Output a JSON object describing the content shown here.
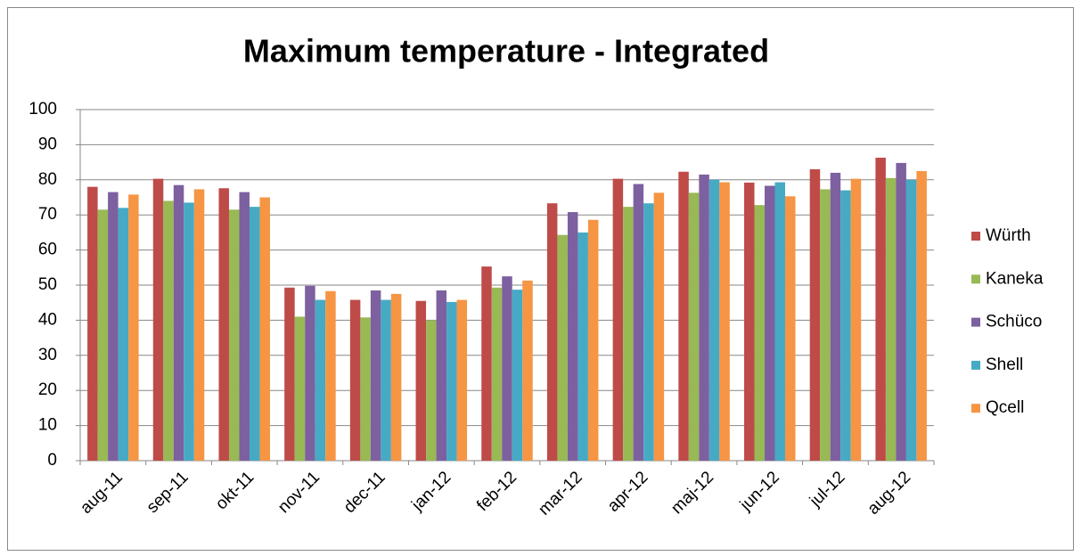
{
  "chart_data": {
    "type": "bar",
    "title": "Maximum temperature - Integrated",
    "categories": [
      "aug-11",
      "sep-11",
      "okt-11",
      "nov-11",
      "dec-11",
      "jan-12",
      "feb-12",
      "mar-12",
      "apr-12",
      "maj-12",
      "jun-12",
      "jul-12",
      "aug-12"
    ],
    "series": [
      {
        "name": "Würth",
        "color": "#be4b48",
        "values": [
          78,
          80.3,
          77.6,
          49.3,
          45.8,
          45.5,
          55.3,
          73.3,
          80.3,
          82.3,
          79.2,
          83,
          86.3
        ]
      },
      {
        "name": "Kaneka",
        "color": "#98b954",
        "values": [
          71.5,
          74,
          71.5,
          41,
          40.8,
          40,
          49.3,
          64.3,
          72.3,
          76.3,
          72.8,
          77.3,
          80.5
        ]
      },
      {
        "name": "Schüco",
        "color": "#7d60a0",
        "values": [
          76.5,
          78.5,
          76.5,
          49.8,
          48.5,
          48.5,
          52.5,
          70.8,
          78.8,
          81.5,
          78.3,
          82,
          84.8
        ]
      },
      {
        "name": "Shell",
        "color": "#46aac5",
        "values": [
          72,
          73.5,
          72.3,
          45.8,
          45.8,
          45.2,
          48.7,
          65,
          73.3,
          80,
          79.3,
          77,
          80
        ]
      },
      {
        "name": "Qcell",
        "color": "#f69544",
        "values": [
          75.8,
          77.3,
          75,
          48.3,
          47.5,
          45.8,
          51.3,
          68.6,
          76.3,
          79.3,
          75.3,
          80.3,
          82.5
        ]
      }
    ],
    "ylim": [
      0,
      100
    ],
    "yticks": [
      0,
      10,
      20,
      30,
      40,
      50,
      60,
      70,
      80,
      90,
      100
    ],
    "grid": true,
    "legend": "right"
  }
}
